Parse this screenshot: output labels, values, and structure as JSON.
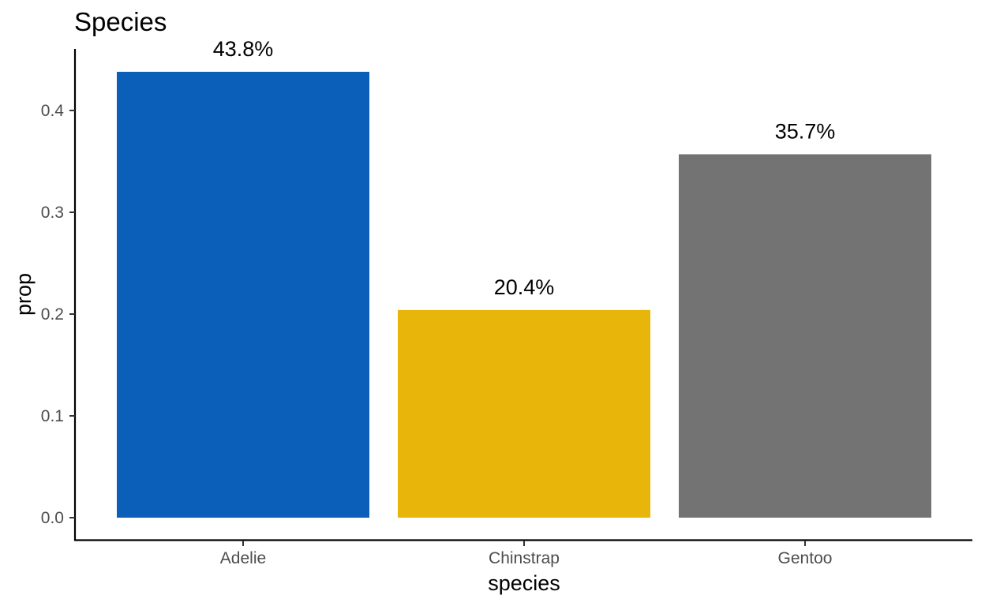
{
  "chart_data": {
    "type": "bar",
    "title": "Species",
    "xlabel": "species",
    "ylabel": "prop",
    "categories": [
      "Adelie",
      "Chinstrap",
      "Gentoo"
    ],
    "values": [
      0.438,
      0.204,
      0.357
    ],
    "data_labels": [
      "43.8%",
      "20.4%",
      "35.7%"
    ],
    "colors": [
      "#0C5FB8",
      "#E8B50B",
      "#737373"
    ],
    "ylim": [
      0,
      0.44
    ],
    "yticks": [
      0.0,
      0.1,
      0.2,
      0.3,
      0.4
    ],
    "ytick_labels": [
      "0.0",
      "0.1",
      "0.2",
      "0.3",
      "0.4"
    ],
    "grid": false,
    "legend": "none"
  }
}
